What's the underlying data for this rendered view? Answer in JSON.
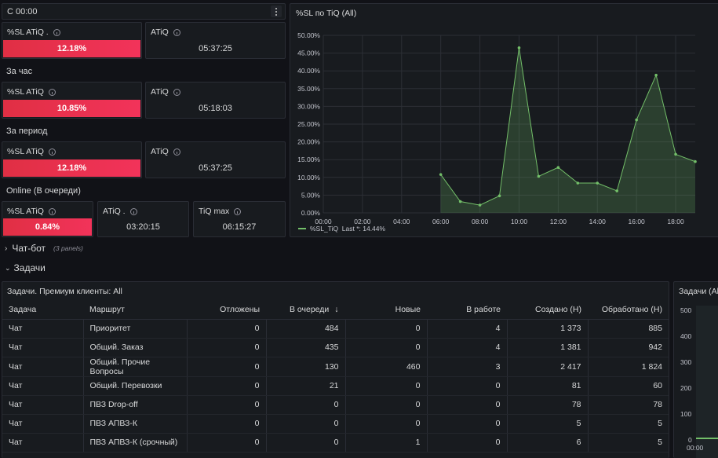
{
  "top_label": "С 00:00",
  "menu_icon": "kebab-menu-icon",
  "sections": {
    "hour": "За час",
    "period": "За период",
    "online": "Online (В очереди)"
  },
  "stats": {
    "sl1": {
      "title": "%SL ATiQ .",
      "value": "12.18%"
    },
    "atiq1": {
      "title": "ATiQ",
      "value": "05:37:25"
    },
    "sl2": {
      "title": "%SL ATiQ",
      "value": "10.85%"
    },
    "atiq2": {
      "title": "ATiQ",
      "value": "05:18:03"
    },
    "sl3": {
      "title": "%SL ATiQ",
      "value": "12.18%"
    },
    "atiq3": {
      "title": "ATiQ",
      "value": "05:37:25"
    },
    "sl4": {
      "title": "%SL ATiQ",
      "value": "0.84%"
    },
    "atiq4": {
      "title": "ATiQ .",
      "value": "03:20:15"
    },
    "tiqmax": {
      "title": "TiQ max",
      "value": "06:15:27"
    }
  },
  "chart_panel_title": "%SL по TiQ (All)",
  "chart_legend": "%SL_TiQ  Last *: 14.44%",
  "chart_data": {
    "type": "area",
    "title": "%SL по TiQ (All)",
    "x": [
      6,
      7,
      8,
      9,
      10,
      11,
      12,
      13,
      14,
      15,
      16,
      17,
      18,
      19
    ],
    "series": [
      {
        "name": "%SL_TiQ",
        "values": [
          10.8,
          3.2,
          2.2,
          4.8,
          46.5,
          10.3,
          12.8,
          8.4,
          8.4,
          6.2,
          26.2,
          38.8,
          16.5,
          14.44
        ]
      }
    ],
    "xticks": [
      "00:00",
      "02:00",
      "04:00",
      "06:00",
      "08:00",
      "10:00",
      "12:00",
      "14:00",
      "16:00",
      "18:00"
    ],
    "yticks": [
      "0.00%",
      "5.00%",
      "10.00%",
      "15.00%",
      "20.00%",
      "25.00%",
      "30.00%",
      "35.00%",
      "40.00%",
      "45.00%",
      "50.00%"
    ],
    "xlim": [
      0,
      19
    ],
    "ylim": [
      0,
      50
    ],
    "grid": true,
    "line_color": "#73bf69"
  },
  "rows": {
    "chatbot": {
      "label": "Чат-бот",
      "sub": "(3 panels)"
    },
    "tasks": {
      "label": "Задачи"
    }
  },
  "table": {
    "title": "Задачи. Премиум клиенты: All",
    "columns": [
      "Задача",
      "Маршрут",
      "Отложены",
      "В очереди",
      "Новые",
      "В работе",
      "Создано (Н)",
      "Обработано (Н)"
    ],
    "sort_icon": "arrow-down-icon",
    "rows": [
      [
        "Чат",
        "Приоритет",
        "0",
        "484",
        "0",
        "4",
        "1 373",
        "885"
      ],
      [
        "Чат",
        "Общий. Заказ",
        "0",
        "435",
        "0",
        "4",
        "1 381",
        "942"
      ],
      [
        "Чат",
        "Общий. Прочие Вопросы",
        "0",
        "130",
        "460",
        "3",
        "2 417",
        "1 824"
      ],
      [
        "Чат",
        "Общий. Перевозки",
        "0",
        "21",
        "0",
        "0",
        "81",
        "60"
      ],
      [
        "Чат",
        "ПВЗ Drop-off",
        "0",
        "0",
        "0",
        "0",
        "78",
        "78"
      ],
      [
        "Чат",
        "ПВЗ АПВЗ-К",
        "0",
        "0",
        "0",
        "0",
        "5",
        "5"
      ],
      [
        "Чат",
        "ПВЗ АПВЗ-К (срочный)",
        "0",
        "0",
        "1",
        "0",
        "6",
        "5"
      ]
    ]
  },
  "side_panel": {
    "title": "Задачи (All",
    "yticks": [
      "500",
      "400",
      "300",
      "200",
      "100",
      "0"
    ],
    "xtick": "00:00"
  }
}
